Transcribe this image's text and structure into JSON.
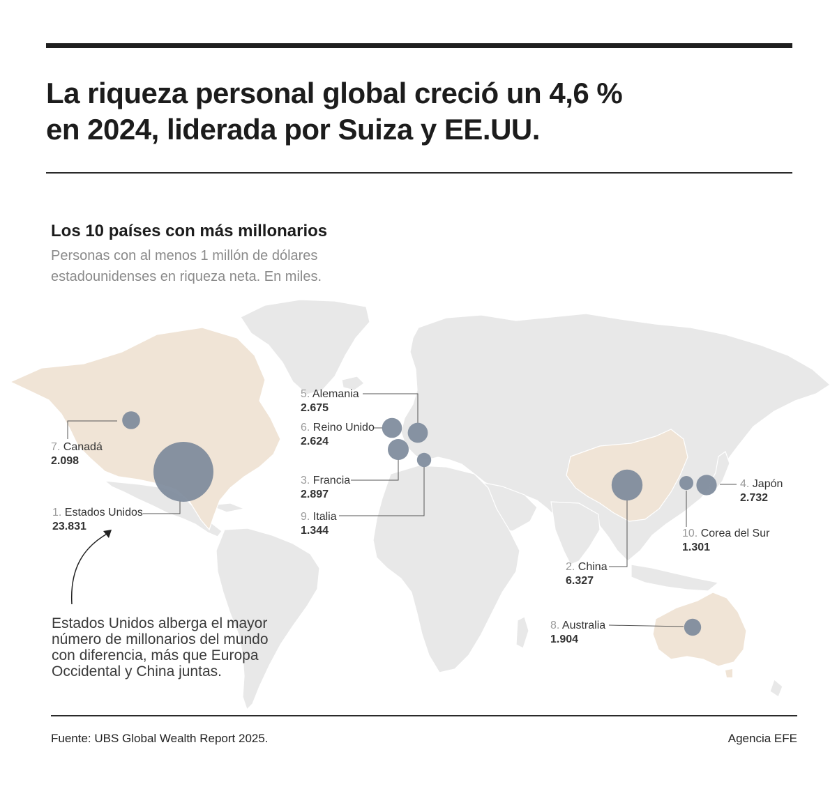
{
  "headline": {
    "line1": "La riqueza personal global creció un 4,6 %",
    "line2": "en 2024, liderada por Suiza y EE.UU."
  },
  "subtitle": "Los 10 países con más millonarios",
  "description": {
    "line1": "Personas con al menos 1 millón de dólares",
    "line2": "estadounidenses en riqueza neta. En miles."
  },
  "countries": [
    {
      "rank": "1.",
      "name": "Estados Unidos",
      "value": "23.831",
      "millionaires_thousands": 23831
    },
    {
      "rank": "2.",
      "name": "China",
      "value": "6.327",
      "millionaires_thousands": 6327
    },
    {
      "rank": "3.",
      "name": "Francia",
      "value": "2.897",
      "millionaires_thousands": 2897
    },
    {
      "rank": "4.",
      "name": "Japón",
      "value": "2.732",
      "millionaires_thousands": 2732
    },
    {
      "rank": "5.",
      "name": "Alemania",
      "value": "2.675",
      "millionaires_thousands": 2675
    },
    {
      "rank": "6.",
      "name": "Reino Unido",
      "value": "2.624",
      "millionaires_thousands": 2624
    },
    {
      "rank": "7.",
      "name": "Canadá",
      "value": "2.098",
      "millionaires_thousands": 2098
    },
    {
      "rank": "8.",
      "name": "Australia",
      "value": "1.904",
      "millionaires_thousands": 1904
    },
    {
      "rank": "9.",
      "name": "Italia",
      "value": "1.344",
      "millionaires_thousands": 1344
    },
    {
      "rank": "10.",
      "name": "Corea del Sur",
      "value": "1.301",
      "millionaires_thousands": 1301
    }
  ],
  "note": {
    "line1": "Estados Unidos alberga el mayor",
    "line2": "número de millonarios del mundo",
    "line3": "con diferencia, más que Europa",
    "line4": "Occidental y China juntas."
  },
  "footer": {
    "source": "Fuente: UBS Global Wealth Report 2025.",
    "credit": "Agencia EFE"
  },
  "colors": {
    "bubble": "#7d8a9b",
    "land": "#e8e8e8",
    "highlight_land": "#f0e4d6",
    "text": "#1f1f1f",
    "muted": "#8a8a8a"
  }
}
